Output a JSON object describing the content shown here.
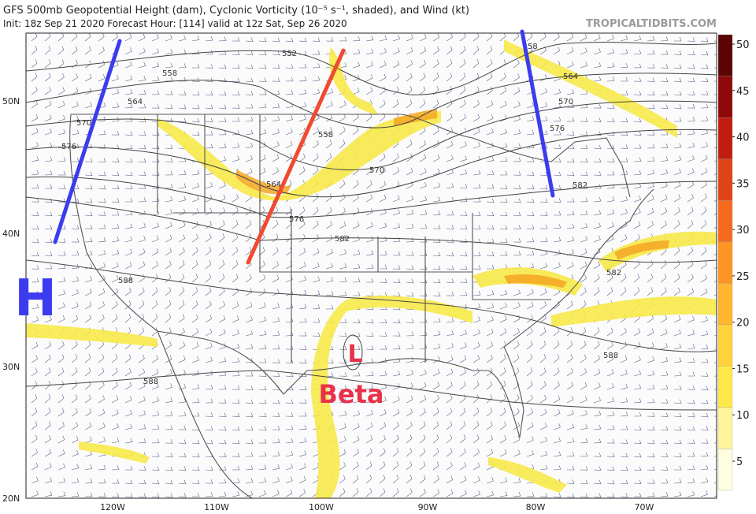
{
  "header": {
    "title": "GFS 500mb Geopotential Height (dam), Cyclonic Vorticity (10⁻⁵ s⁻¹, shaded), and Wind (kt)",
    "init": "Init: 18z Sep 21 2020   Forecast Hour: [114]   valid at 12z Sat, Sep 26 2020",
    "site": "TROPICALTIDBITS.COM"
  },
  "colorbar": {
    "labels": [
      5,
      10,
      15,
      20,
      25,
      30,
      35,
      40,
      45,
      50
    ]
  },
  "lat_labels": [
    "50N",
    "40N",
    "30N",
    "20N"
  ],
  "lon_labels": [
    "120W",
    "110W",
    "100W",
    "90W",
    "80W",
    "70W"
  ],
  "contour_labels": [
    "552",
    "558",
    "564",
    "570",
    "576",
    "558",
    "564",
    "570",
    "576",
    "582",
    "588",
    "588",
    "582",
    "588",
    "58",
    "564",
    "570",
    "576",
    "582"
  ],
  "annotations": {
    "high": "H",
    "low": "L",
    "beta": "Beta"
  }
}
